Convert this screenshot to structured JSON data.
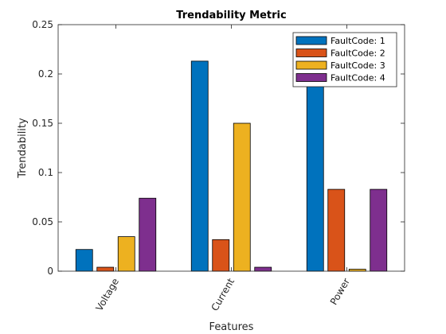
{
  "chart_data": {
    "type": "bar",
    "title": "Trendability Metric",
    "xlabel": "Features",
    "ylabel": "Trendability",
    "categories": [
      "Voltage",
      "Current",
      "Power"
    ],
    "ylim": [
      0,
      0.25
    ],
    "yticks": [
      "0",
      "0.05",
      "0.1",
      "0.15",
      "0.2",
      "0.25"
    ],
    "ytick_values": [
      0,
      0.05,
      0.1,
      0.15,
      0.2,
      0.25
    ],
    "grid": false,
    "legend_position": "top-right",
    "series": [
      {
        "name": "FaultCode: 1",
        "color": "#0072BD",
        "values": [
          0.022,
          0.213,
          0.232
        ]
      },
      {
        "name": "FaultCode: 2",
        "color": "#D95319",
        "values": [
          0.004,
          0.032,
          0.083
        ]
      },
      {
        "name": "FaultCode: 3",
        "color": "#EDB120",
        "values": [
          0.035,
          0.15,
          0.002
        ]
      },
      {
        "name": "FaultCode: 4",
        "color": "#7E2F8E",
        "values": [
          0.074,
          0.004,
          0.083
        ]
      }
    ]
  }
}
